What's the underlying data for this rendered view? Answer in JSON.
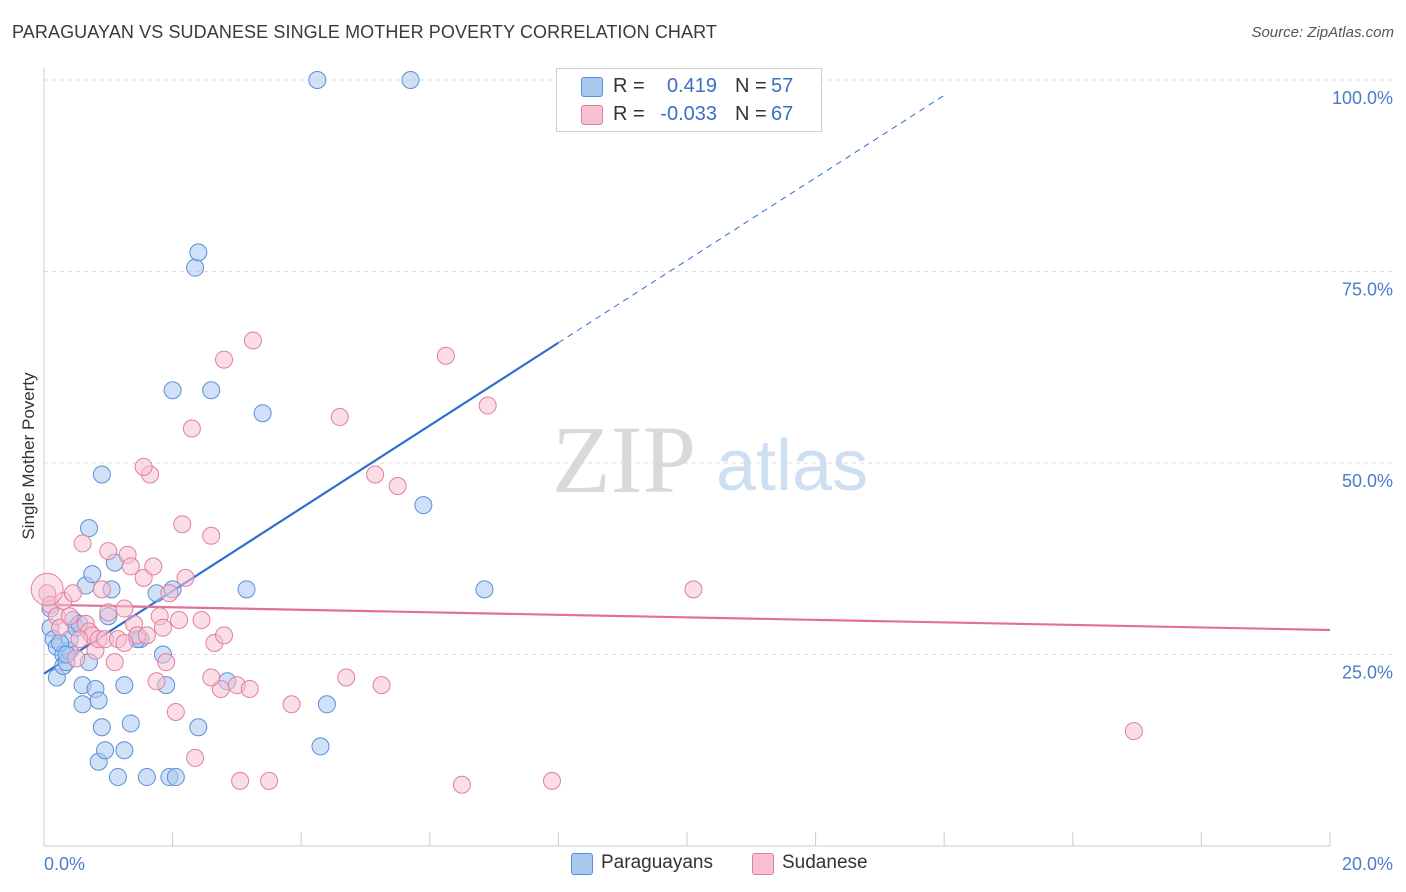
{
  "header": {
    "title": "PARAGUAYAN VS SUDANESE SINGLE MOTHER POVERTY CORRELATION CHART",
    "source": "Source: ZipAtlas.com"
  },
  "watermark": {
    "zip": "ZIP",
    "atlas": "atlas"
  },
  "legend": {
    "rows": [
      {
        "r_label": "R =",
        "r_value": "0.419",
        "n_label": "N =",
        "n_value": "57",
        "color": "#a9c8f0",
        "border": "#5b8fd6"
      },
      {
        "r_label": "R =",
        "r_value": "-0.033",
        "n_label": "N =",
        "n_value": "67",
        "color": "#f7c1d2",
        "border": "#e07fa0"
      }
    ]
  },
  "bottom_legend": {
    "items": [
      {
        "label": "Paraguayans",
        "color": "#a9c8f0",
        "border": "#5b8fd6"
      },
      {
        "label": "Sudanese",
        "color": "#f7c1d2",
        "border": "#e07fa0"
      }
    ]
  },
  "chart_data": {
    "type": "scatter",
    "title": "PARAGUAYAN VS SUDANESE SINGLE MOTHER POVERTY CORRELATION CHART",
    "xlabel": "",
    "ylabel": "Single Mother Poverty",
    "xlim": [
      0,
      20
    ],
    "ylim": [
      0,
      100
    ],
    "x_tick_labels": [
      "0.0%",
      "20.0%"
    ],
    "y_tick_labels": [
      {
        "value": 25,
        "label": "25.0%"
      },
      {
        "value": 50,
        "label": "50.0%"
      },
      {
        "value": 75,
        "label": "75.0%"
      },
      {
        "value": 100,
        "label": "100.0%"
      }
    ],
    "grid": true,
    "legend_position": "top-center",
    "series": [
      {
        "name": "Paraguayans",
        "color": "#5b8fd6",
        "fill": "#a9c8f0",
        "trend": {
          "x": [
            0,
            8.0
          ],
          "y": [
            22.5,
            65.7
          ],
          "dashed_to": [
            14.0,
            98.0
          ]
        },
        "points": [
          [
            0.1,
            31.0
          ],
          [
            0.1,
            28.5
          ],
          [
            0.15,
            27.0
          ],
          [
            0.2,
            26.0
          ],
          [
            0.2,
            22.0
          ],
          [
            0.3,
            25.0
          ],
          [
            0.3,
            23.5
          ],
          [
            0.35,
            24.0
          ],
          [
            0.4,
            25.5
          ],
          [
            0.4,
            27.0
          ],
          [
            0.45,
            29.5
          ],
          [
            0.5,
            28.5
          ],
          [
            0.6,
            21.0
          ],
          [
            0.6,
            18.5
          ],
          [
            0.65,
            34.0
          ],
          [
            0.7,
            41.5
          ],
          [
            0.7,
            24.0
          ],
          [
            0.75,
            35.5
          ],
          [
            0.8,
            20.5
          ],
          [
            0.85,
            19.0
          ],
          [
            0.85,
            11.0
          ],
          [
            0.9,
            15.5
          ],
          [
            0.9,
            48.5
          ],
          [
            0.95,
            12.5
          ],
          [
            1.0,
            30.0
          ],
          [
            1.05,
            33.5
          ],
          [
            1.1,
            37.0
          ],
          [
            1.15,
            9.0
          ],
          [
            1.25,
            12.5
          ],
          [
            1.25,
            21.0
          ],
          [
            1.35,
            16.0
          ],
          [
            1.5,
            27.0
          ],
          [
            1.6,
            9.0
          ],
          [
            1.75,
            33.0
          ],
          [
            1.85,
            25.0
          ],
          [
            1.9,
            21.0
          ],
          [
            1.95,
            9.0
          ],
          [
            2.05,
            9.0
          ],
          [
            2.0,
            33.5
          ],
          [
            2.0,
            59.5
          ],
          [
            2.35,
            75.5
          ],
          [
            2.4,
            77.5
          ],
          [
            2.4,
            15.5
          ],
          [
            2.6,
            59.5
          ],
          [
            2.85,
            21.5
          ],
          [
            3.15,
            33.5
          ],
          [
            3.4,
            56.5
          ],
          [
            4.3,
            13.0
          ],
          [
            4.4,
            18.5
          ],
          [
            4.25,
            100.0
          ],
          [
            5.7,
            100.0
          ],
          [
            5.9,
            44.5
          ],
          [
            6.85,
            33.5
          ],
          [
            0.25,
            26.5
          ],
          [
            0.55,
            29.0
          ],
          [
            1.45,
            27.0
          ],
          [
            0.35,
            25.0
          ]
        ]
      },
      {
        "name": "Sudanese",
        "color": "#e07fa0",
        "fill": "#f7c1d2",
        "trend": {
          "x": [
            0,
            20
          ],
          "y": [
            31.5,
            28.2
          ]
        },
        "points": [
          [
            0.05,
            33.0
          ],
          [
            0.1,
            31.5
          ],
          [
            0.2,
            30.0
          ],
          [
            0.25,
            28.5
          ],
          [
            0.3,
            32.0
          ],
          [
            0.4,
            30.0
          ],
          [
            0.45,
            33.0
          ],
          [
            0.5,
            24.5
          ],
          [
            0.6,
            39.5
          ],
          [
            0.65,
            29.0
          ],
          [
            0.7,
            28.0
          ],
          [
            0.75,
            27.5
          ],
          [
            0.8,
            25.5
          ],
          [
            0.85,
            27.0
          ],
          [
            0.9,
            33.5
          ],
          [
            0.95,
            27.0
          ],
          [
            1.0,
            30.5
          ],
          [
            1.0,
            38.5
          ],
          [
            1.1,
            24.0
          ],
          [
            1.15,
            27.0
          ],
          [
            1.25,
            31.0
          ],
          [
            1.3,
            38.0
          ],
          [
            1.35,
            36.5
          ],
          [
            1.4,
            29.0
          ],
          [
            1.45,
            27.5
          ],
          [
            1.55,
            35.0
          ],
          [
            1.6,
            27.5
          ],
          [
            1.65,
            48.5
          ],
          [
            1.7,
            36.5
          ],
          [
            1.75,
            21.5
          ],
          [
            1.8,
            30.0
          ],
          [
            1.85,
            28.5
          ],
          [
            1.9,
            24.0
          ],
          [
            1.95,
            33.0
          ],
          [
            2.05,
            17.5
          ],
          [
            2.1,
            29.5
          ],
          [
            2.15,
            42.0
          ],
          [
            2.2,
            35.0
          ],
          [
            2.3,
            54.5
          ],
          [
            2.35,
            11.5
          ],
          [
            2.45,
            29.5
          ],
          [
            2.6,
            40.5
          ],
          [
            2.65,
            26.5
          ],
          [
            2.75,
            20.5
          ],
          [
            2.8,
            63.5
          ],
          [
            2.8,
            27.5
          ],
          [
            3.0,
            21.0
          ],
          [
            3.05,
            8.5
          ],
          [
            3.2,
            20.5
          ],
          [
            3.25,
            66.0
          ],
          [
            3.5,
            8.5
          ],
          [
            3.85,
            18.5
          ],
          [
            4.6,
            56.0
          ],
          [
            4.7,
            22.0
          ],
          [
            5.15,
            48.5
          ],
          [
            5.25,
            21.0
          ],
          [
            5.5,
            47.0
          ],
          [
            6.25,
            64.0
          ],
          [
            6.5,
            8.0
          ],
          [
            6.9,
            57.5
          ],
          [
            7.9,
            8.5
          ],
          [
            10.1,
            33.5
          ],
          [
            16.95,
            15.0
          ],
          [
            1.55,
            49.5
          ],
          [
            0.55,
            27.0
          ],
          [
            1.25,
            26.5
          ],
          [
            2.6,
            22.0
          ]
        ]
      }
    ]
  }
}
